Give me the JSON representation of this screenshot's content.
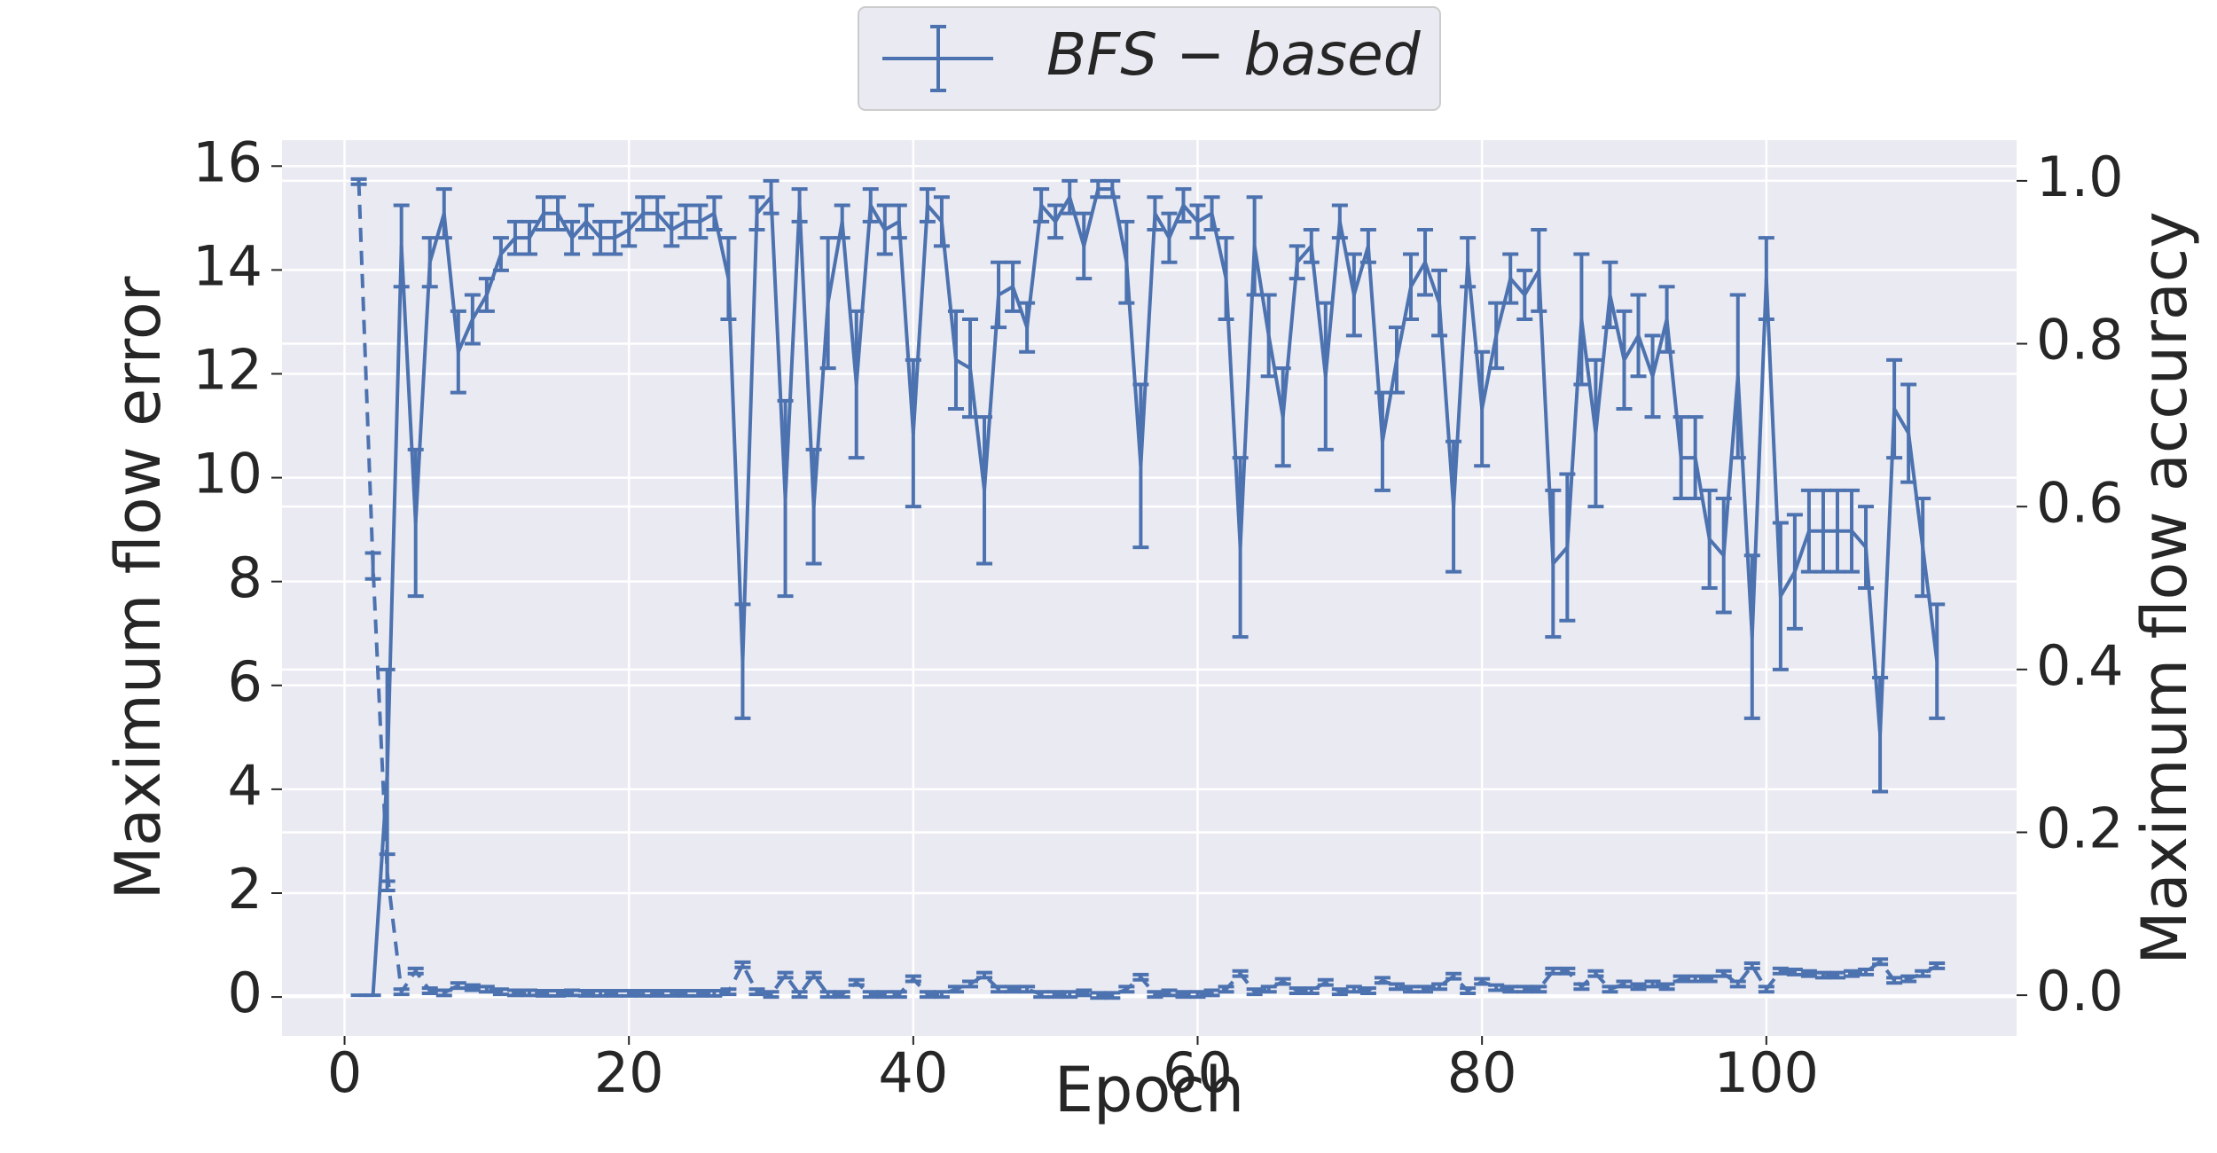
{
  "chart_data": {
    "type": "errorbar",
    "xlabel": "Epoch",
    "ylabel": "Maximum flow error",
    "y2label": "Maximum flow accuracy",
    "xlim": [
      -4.4,
      117.6
    ],
    "ylim": [
      -0.75,
      16.5
    ],
    "y2lim": [
      -0.05,
      1.05
    ],
    "xticks": [
      0,
      20,
      40,
      60,
      80,
      100
    ],
    "yticks": [
      0,
      2,
      4,
      6,
      8,
      10,
      12,
      14,
      16
    ],
    "y2ticks": [
      {
        "value": 0,
        "label": "0.0"
      },
      0.2,
      0.4,
      0.6,
      0.8,
      {
        "value": 1,
        "label": "1.0"
      }
    ],
    "grid": true,
    "legend": "upper center",
    "x": [
      1,
      2,
      3,
      4,
      5,
      6,
      7,
      8,
      9,
      10,
      11,
      12,
      13,
      14,
      15,
      16,
      17,
      18,
      19,
      20,
      21,
      22,
      23,
      24,
      25,
      26,
      27,
      28,
      29,
      30,
      31,
      32,
      33,
      34,
      35,
      36,
      37,
      38,
      39,
      40,
      41,
      42,
      43,
      44,
      45,
      46,
      47,
      48,
      49,
      50,
      51,
      52,
      53,
      54,
      55,
      56,
      57,
      58,
      59,
      60,
      61,
      62,
      63,
      64,
      65,
      66,
      67,
      68,
      69,
      70,
      71,
      72,
      73,
      74,
      75,
      76,
      77,
      78,
      79,
      80,
      81,
      82,
      83,
      84,
      85,
      86,
      87,
      88,
      89,
      90,
      91,
      92,
      93,
      94,
      95,
      96,
      97,
      98,
      99,
      100,
      101,
      102,
      103,
      104,
      105,
      106,
      107,
      108,
      109,
      110,
      111,
      112
    ],
    "series": [
      {
        "name": "BFS − based",
        "color": "#4c72b0",
        "linestyle": "solid",
        "axis": "y2",
        "values": [
          0,
          0,
          0.27,
          0.92,
          0.58,
          0.9,
          0.96,
          0.79,
          0.83,
          0.86,
          0.91,
          0.93,
          0.93,
          0.96,
          0.96,
          0.93,
          0.95,
          0.93,
          0.93,
          0.94,
          0.96,
          0.96,
          0.94,
          0.95,
          0.95,
          0.96,
          0.88,
          0.41,
          0.96,
          0.98,
          0.61,
          0.97,
          0.6,
          0.85,
          0.95,
          0.75,
          0.97,
          0.94,
          0.95,
          0.69,
          0.97,
          0.95,
          0.78,
          0.77,
          0.62,
          0.86,
          0.87,
          0.82,
          0.97,
          0.95,
          0.98,
          0.92,
          0.99,
          0.99,
          0.9,
          0.65,
          0.96,
          0.93,
          0.97,
          0.95,
          0.96,
          0.88,
          0.55,
          0.92,
          0.81,
          0.71,
          0.9,
          0.92,
          0.76,
          0.95,
          0.86,
          0.92,
          0.68,
          0.78,
          0.87,
          0.9,
          0.85,
          0.6,
          0.9,
          0.72,
          0.81,
          0.88,
          0.86,
          0.89,
          0.53,
          0.55,
          0.83,
          0.69,
          0.86,
          0.78,
          0.81,
          0.76,
          0.83,
          0.66,
          0.66,
          0.56,
          0.54,
          0.76,
          0.44,
          0.88,
          0.49,
          0.52,
          0.57,
          0.57,
          0.57,
          0.57,
          0.55,
          0.32,
          0.72,
          0.69,
          0.55,
          0.41
        ],
        "errors": [
          0,
          0,
          0.13,
          0.05,
          0.09,
          0.03,
          0.03,
          0.05,
          0.03,
          0.02,
          0.02,
          0.02,
          0.02,
          0.02,
          0.02,
          0.02,
          0.02,
          0.02,
          0.02,
          0.02,
          0.02,
          0.02,
          0.02,
          0.02,
          0.02,
          0.02,
          0.05,
          0.07,
          0.02,
          0.02,
          0.12,
          0.02,
          0.07,
          0.08,
          0.02,
          0.09,
          0.02,
          0.03,
          0.02,
          0.09,
          0.02,
          0.03,
          0.06,
          0.06,
          0.09,
          0.04,
          0.03,
          0.03,
          0.02,
          0.02,
          0.02,
          0.04,
          0.01,
          0.01,
          0.05,
          0.1,
          0.02,
          0.03,
          0.02,
          0.02,
          0.02,
          0.05,
          0.11,
          0.06,
          0.05,
          0.06,
          0.02,
          0.02,
          0.09,
          0.02,
          0.05,
          0.02,
          0.06,
          0.04,
          0.04,
          0.04,
          0.04,
          0.08,
          0.03,
          0.07,
          0.04,
          0.03,
          0.03,
          0.05,
          0.09,
          0.09,
          0.08,
          0.09,
          0.04,
          0.06,
          0.05,
          0.05,
          0.04,
          0.05,
          0.05,
          0.06,
          0.07,
          0.1,
          0.1,
          0.05,
          0.09,
          0.07,
          0.05,
          0.05,
          0.05,
          0.05,
          0.05,
          0.07,
          0.06,
          0.06,
          0.06,
          0.07
        ]
      },
      {
        "color": "#4c72b0",
        "linestyle": "dashed",
        "axis": "y",
        "values": [
          15.7,
          8.3,
          2.4,
          0.1,
          0.5,
          0.12,
          0.08,
          0.22,
          0.18,
          0.15,
          0.1,
          0.08,
          0.08,
          0.07,
          0.07,
          0.08,
          0.07,
          0.07,
          0.07,
          0.07,
          0.07,
          0.07,
          0.07,
          0.07,
          0.07,
          0.07,
          0.1,
          0.62,
          0.1,
          0.05,
          0.42,
          0.05,
          0.42,
          0.05,
          0.05,
          0.28,
          0.05,
          0.05,
          0.05,
          0.35,
          0.05,
          0.05,
          0.15,
          0.25,
          0.42,
          0.15,
          0.15,
          0.15,
          0.05,
          0.05,
          0.05,
          0.08,
          0.03,
          0.03,
          0.15,
          0.38,
          0.05,
          0.08,
          0.05,
          0.05,
          0.08,
          0.15,
          0.45,
          0.1,
          0.15,
          0.3,
          0.12,
          0.12,
          0.28,
          0.1,
          0.15,
          0.12,
          0.32,
          0.2,
          0.15,
          0.15,
          0.2,
          0.4,
          0.12,
          0.3,
          0.18,
          0.15,
          0.15,
          0.15,
          0.5,
          0.5,
          0.2,
          0.45,
          0.15,
          0.25,
          0.2,
          0.25,
          0.2,
          0.35,
          0.35,
          0.35,
          0.45,
          0.25,
          0.6,
          0.15,
          0.5,
          0.48,
          0.45,
          0.42,
          0.42,
          0.45,
          0.48,
          0.68,
          0.32,
          0.35,
          0.45,
          0.6
        ],
        "errors": [
          0.05,
          0.25,
          0.35,
          0.05,
          0.05,
          0.05,
          0.05,
          0.05,
          0.05,
          0.05,
          0.05,
          0.05,
          0.05,
          0.05,
          0.05,
          0.05,
          0.05,
          0.05,
          0.05,
          0.05,
          0.05,
          0.05,
          0.05,
          0.05,
          0.05,
          0.05,
          0.05,
          0.05,
          0.05,
          0.05,
          0.05,
          0.05,
          0.05,
          0.05,
          0.05,
          0.05,
          0.05,
          0.05,
          0.05,
          0.05,
          0.05,
          0.05,
          0.05,
          0.05,
          0.05,
          0.05,
          0.05,
          0.05,
          0.05,
          0.05,
          0.05,
          0.05,
          0.05,
          0.05,
          0.05,
          0.05,
          0.05,
          0.05,
          0.05,
          0.05,
          0.05,
          0.05,
          0.05,
          0.05,
          0.05,
          0.05,
          0.05,
          0.05,
          0.05,
          0.05,
          0.05,
          0.05,
          0.05,
          0.05,
          0.05,
          0.05,
          0.05,
          0.05,
          0.05,
          0.05,
          0.05,
          0.05,
          0.05,
          0.05,
          0.05,
          0.05,
          0.05,
          0.05,
          0.05,
          0.05,
          0.05,
          0.05,
          0.05,
          0.05,
          0.05,
          0.05,
          0.05,
          0.05,
          0.05,
          0.05,
          0.05,
          0.05,
          0.05,
          0.05,
          0.05,
          0.05,
          0.05,
          0.05,
          0.05,
          0.05,
          0.05,
          0.05
        ]
      }
    ]
  }
}
